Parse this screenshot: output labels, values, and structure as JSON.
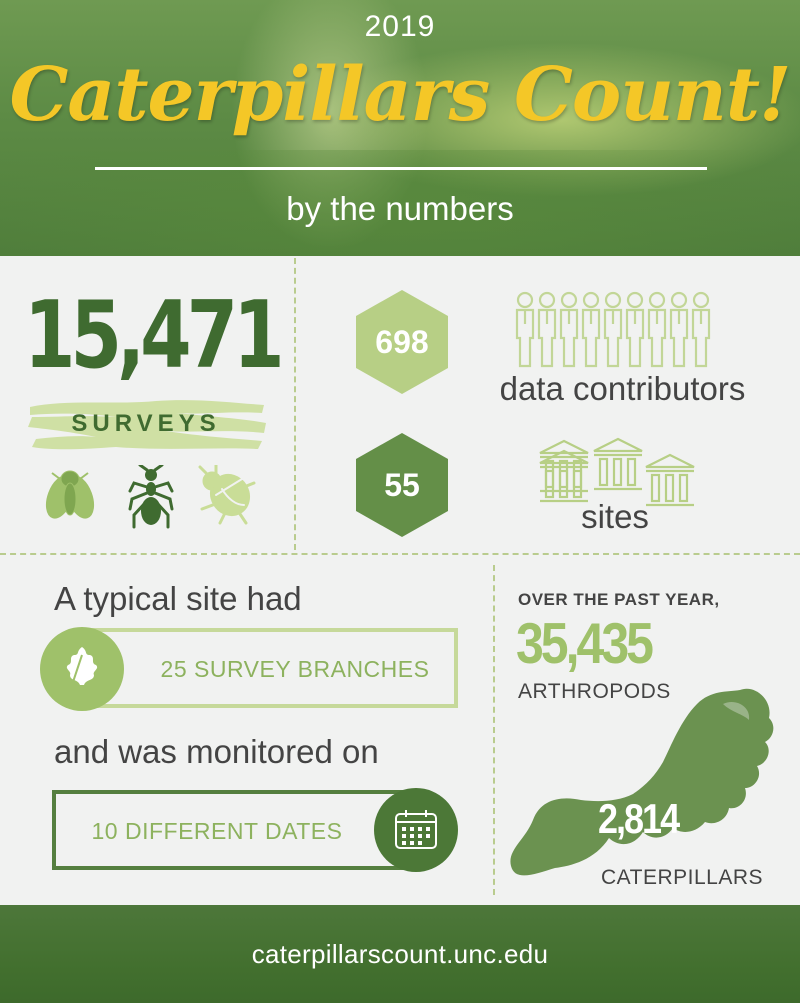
{
  "header": {
    "year": "2019",
    "title": "Caterpillars Count!",
    "subtitle": "by the numbers"
  },
  "surveys": {
    "count": "15,471",
    "label": "SURVEYS",
    "icons": [
      "fly-icon",
      "ant-icon",
      "beetle-icon"
    ]
  },
  "contributors": {
    "count": "698",
    "label": "data contributors",
    "icon": "people-icon"
  },
  "sites": {
    "count": "55",
    "label": "sites",
    "icon": "building-icon"
  },
  "typical_site": {
    "intro": "A typical site had",
    "branches": "25 SURVEY BRANCHES",
    "monitored": "and was monitored on",
    "dates": "10 DIFFERENT DATES",
    "icons": [
      "oak-leaf-icon",
      "calendar-icon"
    ]
  },
  "arthropods": {
    "period": "OVER THE PAST YEAR,",
    "count": "35,435",
    "label": "ARTHROPODS",
    "caterpillar_count": "2,814",
    "caterpillar_label": "CATERPILLARS",
    "icon": "caterpillar-icon"
  },
  "footer": {
    "url": "caterpillarscount.unc.edu"
  },
  "colors": {
    "dark_green": "#3f6b30",
    "light_green": "#9fc16a",
    "pale_green": "#b7cf85",
    "title_yellow": "#f4c727"
  }
}
